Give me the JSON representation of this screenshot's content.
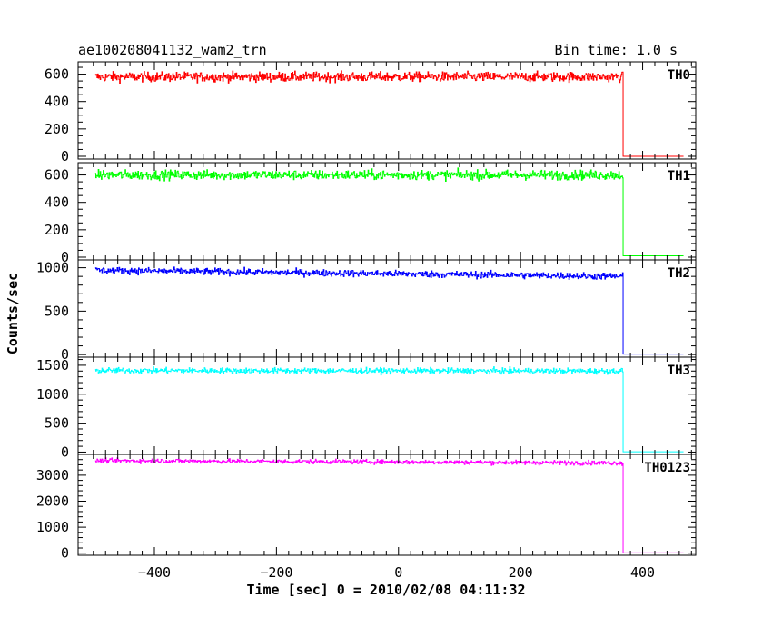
{
  "chart_data": {
    "type": "line",
    "title": "ae100208041132_wam2_trn",
    "bin_time": "Bin time: 1.0 s",
    "xlabel": "Time [sec] 0 = 2010/02/08 04:11:32",
    "ylabel": "Counts/sec",
    "xlim": [
      -525,
      487
    ],
    "x_ticks": [
      -400,
      -200,
      0,
      200,
      400
    ],
    "x_tick_labels": [
      "−400",
      "−200",
      "0",
      "200",
      "400"
    ],
    "x_minor_step": 20,
    "data_x_start": -497,
    "data_x_end": 367,
    "drop_x": 368,
    "plateau_x_end": 467,
    "grid": false,
    "panels": [
      {
        "name": "TH0",
        "color": "#ff0000",
        "ylim": [
          -20,
          690
        ],
        "y_ticks": [
          0,
          200,
          400,
          600
        ],
        "y_tick_labels": [
          "0",
          "200",
          "400",
          "600"
        ],
        "y_minor_step": 50,
        "level_start": 580,
        "level_end": 580,
        "noise": 25,
        "after_value": 0
      },
      {
        "name": "TH1",
        "color": "#00ff00",
        "ylim": [
          -20,
          690
        ],
        "y_ticks": [
          0,
          200,
          400,
          600
        ],
        "y_tick_labels": [
          "0",
          "200",
          "400",
          "600"
        ],
        "y_minor_step": 50,
        "level_start": 600,
        "level_end": 600,
        "noise": 25,
        "after_value": 10
      },
      {
        "name": "TH2",
        "color": "#0000ff",
        "ylim": [
          -30,
          1090
        ],
        "y_ticks": [
          0,
          500,
          1000
        ],
        "y_tick_labels": [
          "0",
          "500",
          "1000"
        ],
        "y_minor_step": 100,
        "level_start": 970,
        "level_end": 900,
        "noise": 28,
        "after_value": 5
      },
      {
        "name": "TH3",
        "color": "#00ffff",
        "ylim": [
          -40,
          1640
        ],
        "y_ticks": [
          0,
          500,
          1000,
          1500
        ],
        "y_tick_labels": [
          "0",
          "500",
          "1000",
          "1500"
        ],
        "y_minor_step": 100,
        "level_start": 1410,
        "level_end": 1400,
        "noise": 35,
        "after_value": 5
      },
      {
        "name": "TH0123",
        "color": "#ff00ff",
        "ylim": [
          -80,
          3800
        ],
        "y_ticks": [
          0,
          1000,
          2000,
          3000
        ],
        "y_tick_labels": [
          "0",
          "1000",
          "2000",
          "3000"
        ],
        "y_minor_step": 200,
        "level_start": 3560,
        "level_end": 3470,
        "noise": 60,
        "after_value": 10
      }
    ]
  }
}
